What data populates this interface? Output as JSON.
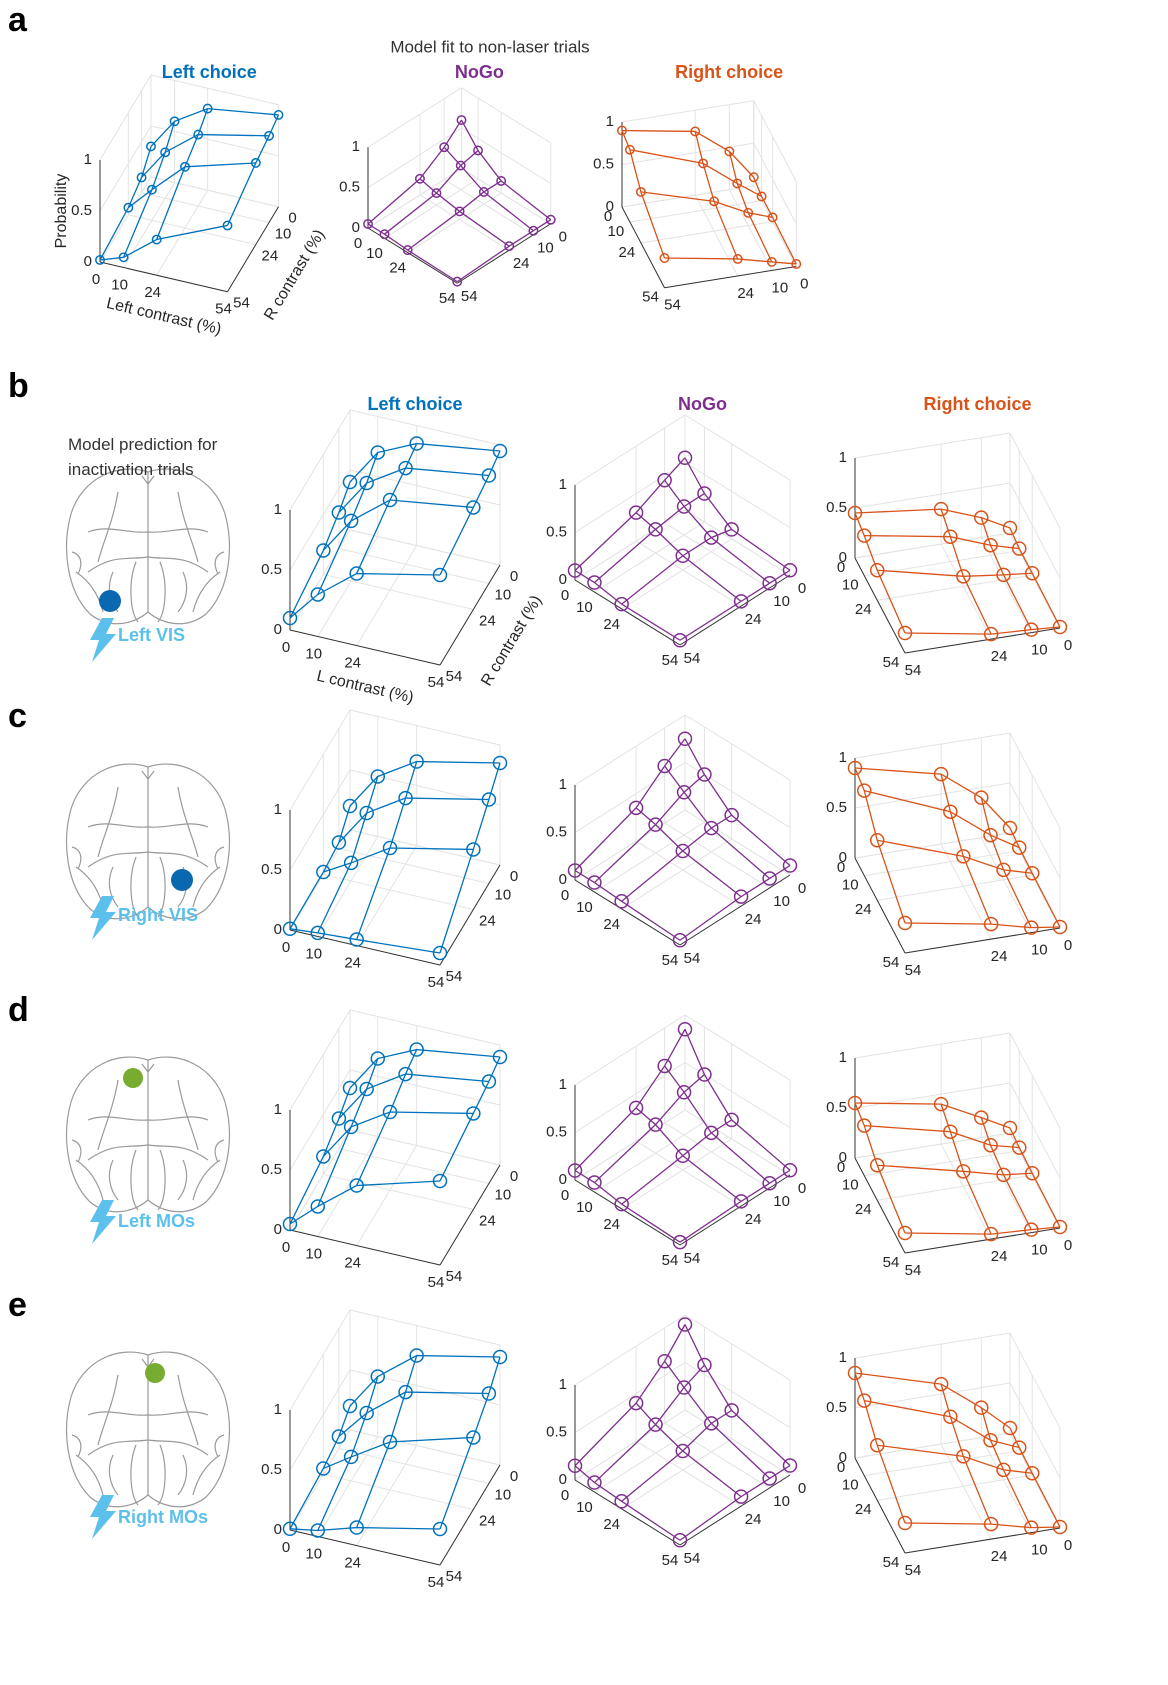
{
  "panels": [
    {
      "letter": "a",
      "heading": "Model fit to non-laser trials"
    },
    {
      "letter": "b",
      "heading": "Model prediction for inactivation trials",
      "site": "Left VIS"
    },
    {
      "letter": "c",
      "site": "Right VIS"
    },
    {
      "letter": "d",
      "site": "Left MOs"
    },
    {
      "letter": "e",
      "site": "Right MOs"
    }
  ],
  "chart_data": [
    {
      "type": "surface3d",
      "title": "Left choice",
      "color": "#0072bd",
      "xlabel": "Left contrast (%)",
      "ylabel": "R contrast (%)",
      "zlabel": "Probability",
      "x": [
        0,
        10,
        24,
        54
      ],
      "y": [
        0,
        10,
        24,
        54
      ],
      "values": [
        [
          0.3,
          0.6,
          0.8,
          0.9
        ],
        [
          0.15,
          0.45,
          0.7,
          0.85
        ],
        [
          0.07,
          0.3,
          0.6,
          0.8
        ],
        [
          0.02,
          0.1,
          0.35,
          0.65
        ]
      ],
      "xlim": [
        0,
        54
      ],
      "ylim": [
        0,
        54
      ],
      "zlim": [
        0,
        1
      ],
      "xticks": [
        0,
        10,
        24,
        54
      ],
      "yticks": [
        0,
        10,
        24,
        54
      ],
      "zticks": [
        0,
        0.5,
        1
      ]
    },
    {
      "type": "surface3d",
      "title": "NoGo",
      "color": "#7e2f8e",
      "x": [
        0,
        10,
        24,
        54
      ],
      "y": [
        0,
        10,
        24,
        54
      ],
      "values": [
        [
          0.6,
          0.35,
          0.15,
          0.05
        ],
        [
          0.4,
          0.3,
          0.15,
          0.05
        ],
        [
          0.2,
          0.15,
          0.1,
          0.05
        ],
        [
          0.05,
          0.05,
          0.03,
          0.02
        ]
      ],
      "xlim": [
        0,
        54
      ],
      "ylim": [
        0,
        54
      ],
      "zlim": [
        0,
        1
      ],
      "xticks": [
        0,
        10,
        24,
        54
      ],
      "yticks": [
        0,
        10,
        24,
        54
      ],
      "zticks": [
        0,
        0.5,
        1
      ]
    },
    {
      "type": "surface3d",
      "title": "Right choice",
      "color": "#d95319",
      "x": [
        0,
        10,
        24,
        54
      ],
      "y": [
        0,
        10,
        24,
        54
      ],
      "values": [
        [
          0.1,
          0.05,
          0.05,
          0.03
        ],
        [
          0.45,
          0.25,
          0.15,
          0.1
        ],
        [
          0.75,
          0.55,
          0.35,
          0.2
        ],
        [
          0.9,
          0.85,
          0.6,
          0.35
        ]
      ],
      "xlim": [
        0,
        54
      ],
      "ylim": [
        0,
        54
      ],
      "zlim": [
        0,
        1
      ],
      "xticks": [
        0,
        10,
        24,
        54
      ],
      "yticks": [
        0,
        10,
        24,
        54
      ],
      "zticks": [
        0,
        0.5,
        1
      ]
    },
    {
      "type": "surface3d",
      "title": "Left choice",
      "color": "#0072bd",
      "xlabel": "L contrast (%)",
      "ylabel": "R contrast (%)",
      "x": [
        0,
        10,
        24,
        54
      ],
      "y": [
        0,
        10,
        24,
        54
      ],
      "values": [
        [
          0.4,
          0.7,
          0.85,
          0.95
        ],
        [
          0.3,
          0.6,
          0.8,
          0.9
        ],
        [
          0.2,
          0.5,
          0.75,
          0.85
        ],
        [
          0.1,
          0.35,
          0.6,
          0.75
        ]
      ],
      "xlim": [
        0,
        54
      ],
      "ylim": [
        0,
        54
      ],
      "zlim": [
        0,
        1
      ],
      "xticks": [
        0,
        10,
        24,
        54
      ],
      "yticks": [
        0,
        10,
        24,
        54
      ],
      "zticks": [
        0,
        0.5,
        1
      ]
    },
    {
      "type": "surface3d",
      "title": "NoGo",
      "color": "#7e2f8e",
      "x": [
        0,
        10,
        24,
        54
      ],
      "y": [
        0,
        10,
        24,
        54
      ],
      "values": [
        [
          0.55,
          0.3,
          0.1,
          0.05
        ],
        [
          0.45,
          0.3,
          0.15,
          0.05
        ],
        [
          0.3,
          0.25,
          0.15,
          0.05
        ],
        [
          0.1,
          0.1,
          0.05,
          0.05
        ]
      ],
      "xlim": [
        0,
        54
      ],
      "ylim": [
        0,
        54
      ],
      "zlim": [
        0,
        1
      ],
      "xticks": [
        0,
        10,
        24,
        54
      ],
      "yticks": [
        0,
        10,
        24,
        54
      ],
      "zticks": [
        0,
        0.5,
        1
      ]
    },
    {
      "type": "surface3d",
      "title": "Right choice",
      "color": "#d95319",
      "x": [
        0,
        10,
        24,
        54
      ],
      "y": [
        0,
        10,
        24,
        54
      ],
      "values": [
        [
          0.05,
          0.02,
          0.02,
          0.01
        ],
        [
          0.2,
          0.1,
          0.05,
          0.03
        ],
        [
          0.35,
          0.25,
          0.1,
          0.05
        ],
        [
          0.45,
          0.4,
          0.3,
          0.2
        ]
      ],
      "xlim": [
        0,
        54
      ],
      "ylim": [
        0,
        54
      ],
      "zlim": [
        0,
        1
      ],
      "xticks": [
        0,
        10,
        24,
        54
      ],
      "yticks": [
        0,
        10,
        24,
        54
      ],
      "zticks": [
        0,
        0.5,
        1
      ]
    },
    {
      "type": "surface3d",
      "color": "#0072bd",
      "x": [
        0,
        10,
        24,
        54
      ],
      "y": [
        0,
        10,
        24,
        54
      ],
      "values": [
        [
          0.2,
          0.5,
          0.7,
          0.85
        ],
        [
          0.05,
          0.35,
          0.55,
          0.7
        ],
        [
          0.02,
          0.15,
          0.35,
          0.5
        ],
        [
          0.01,
          0.03,
          0.05,
          0.1
        ]
      ],
      "xlim": [
        0,
        54
      ],
      "ylim": [
        0,
        54
      ],
      "zlim": [
        0,
        1
      ],
      "xticks": [
        0,
        10,
        24,
        54
      ],
      "yticks": [
        0,
        10,
        24,
        54
      ],
      "zticks": [
        0,
        0.5,
        1
      ]
    },
    {
      "type": "surface3d",
      "color": "#7e2f8e",
      "x": [
        0,
        10,
        24,
        54
      ],
      "y": [
        0,
        10,
        24,
        54
      ],
      "values": [
        [
          0.75,
          0.5,
          0.25,
          0.1
        ],
        [
          0.6,
          0.45,
          0.25,
          0.1
        ],
        [
          0.35,
          0.3,
          0.2,
          0.1
        ],
        [
          0.1,
          0.1,
          0.08,
          0.05
        ]
      ],
      "xlim": [
        0,
        54
      ],
      "ylim": [
        0,
        54
      ],
      "zlim": [
        0,
        1
      ],
      "xticks": [
        0,
        10,
        24,
        54
      ],
      "yticks": [
        0,
        10,
        24,
        54
      ],
      "zticks": [
        0,
        0.5,
        1
      ]
    },
    {
      "type": "surface3d",
      "color": "#d95319",
      "x": [
        0,
        10,
        24,
        54
      ],
      "y": [
        0,
        10,
        24,
        54
      ],
      "values": [
        [
          0.05,
          0.03,
          0.02,
          0.01
        ],
        [
          0.4,
          0.2,
          0.1,
          0.05
        ],
        [
          0.7,
          0.5,
          0.3,
          0.15
        ],
        [
          0.9,
          0.85,
          0.6,
          0.3
        ]
      ],
      "xlim": [
        0,
        54
      ],
      "ylim": [
        0,
        54
      ],
      "zlim": [
        0,
        1
      ],
      "xticks": [
        0,
        10,
        24,
        54
      ],
      "yticks": [
        0,
        10,
        24,
        54
      ],
      "zticks": [
        0,
        0.5,
        1
      ]
    },
    {
      "type": "surface3d",
      "color": "#0072bd",
      "x": [
        0,
        10,
        24,
        54
      ],
      "y": [
        0,
        10,
        24,
        54
      ],
      "values": [
        [
          0.35,
          0.65,
          0.8,
          0.9
        ],
        [
          0.25,
          0.55,
          0.75,
          0.85
        ],
        [
          0.15,
          0.45,
          0.65,
          0.8
        ],
        [
          0.05,
          0.25,
          0.5,
          0.7
        ]
      ],
      "xlim": [
        0,
        54
      ],
      "ylim": [
        0,
        54
      ],
      "zlim": [
        0,
        1
      ],
      "xticks": [
        0,
        10,
        24,
        54
      ],
      "yticks": [
        0,
        10,
        24,
        54
      ],
      "zticks": [
        0,
        0.5,
        1
      ]
    },
    {
      "type": "surface3d",
      "color": "#7e2f8e",
      "x": [
        0,
        10,
        24,
        54
      ],
      "y": [
        0,
        10,
        24,
        54
      ],
      "values": [
        [
          0.85,
          0.5,
          0.2,
          0.05
        ],
        [
          0.6,
          0.45,
          0.2,
          0.05
        ],
        [
          0.35,
          0.3,
          0.15,
          0.05
        ],
        [
          0.1,
          0.1,
          0.05,
          0.03
        ]
      ],
      "xlim": [
        0,
        54
      ],
      "ylim": [
        0,
        54
      ],
      "zlim": [
        0,
        1
      ],
      "xticks": [
        0,
        10,
        24,
        54
      ],
      "yticks": [
        0,
        10,
        24,
        54
      ],
      "zticks": [
        0,
        0.5,
        1
      ]
    },
    {
      "type": "surface3d",
      "color": "#d95319",
      "x": [
        0,
        10,
        24,
        54
      ],
      "y": [
        0,
        10,
        24,
        54
      ],
      "values": [
        [
          0.05,
          0.03,
          0.02,
          0.01
        ],
        [
          0.2,
          0.1,
          0.05,
          0.03
        ],
        [
          0.4,
          0.3,
          0.15,
          0.05
        ],
        [
          0.55,
          0.5,
          0.35,
          0.2
        ]
      ],
      "xlim": [
        0,
        54
      ],
      "ylim": [
        0,
        54
      ],
      "zlim": [
        0,
        1
      ],
      "xticks": [
        0,
        10,
        24,
        54
      ],
      "yticks": [
        0,
        10,
        24,
        54
      ],
      "zticks": [
        0,
        0.5,
        1
      ]
    },
    {
      "type": "surface3d",
      "color": "#0072bd",
      "x": [
        0,
        10,
        24,
        54
      ],
      "y": [
        0,
        10,
        24,
        54
      ],
      "values": [
        [
          0.2,
          0.5,
          0.75,
          0.9
        ],
        [
          0.1,
          0.35,
          0.6,
          0.75
        ],
        [
          0.05,
          0.2,
          0.4,
          0.6
        ],
        [
          0.01,
          0.05,
          0.15,
          0.3
        ]
      ],
      "xlim": [
        0,
        54
      ],
      "ylim": [
        0,
        54
      ],
      "zlim": [
        0,
        1
      ],
      "xticks": [
        0,
        10,
        24,
        54
      ],
      "yticks": [
        0,
        10,
        24,
        54
      ],
      "zticks": [
        0,
        0.5,
        1
      ]
    },
    {
      "type": "surface3d",
      "color": "#7e2f8e",
      "x": [
        0,
        10,
        24,
        54
      ],
      "y": [
        0,
        10,
        24,
        54
      ],
      "values": [
        [
          0.9,
          0.6,
          0.3,
          0.1
        ],
        [
          0.65,
          0.5,
          0.3,
          0.1
        ],
        [
          0.4,
          0.3,
          0.2,
          0.1
        ],
        [
          0.15,
          0.1,
          0.08,
          0.05
        ]
      ],
      "xlim": [
        0,
        54
      ],
      "ylim": [
        0,
        54
      ],
      "zlim": [
        0,
        1
      ],
      "xticks": [
        0,
        10,
        24,
        54
      ],
      "yticks": [
        0,
        10,
        24,
        54
      ],
      "zticks": [
        0,
        0.5,
        1
      ]
    },
    {
      "type": "surface3d",
      "color": "#d95319",
      "x": [
        0,
        10,
        24,
        54
      ],
      "y": [
        0,
        10,
        24,
        54
      ],
      "values": [
        [
          0.05,
          0.03,
          0.02,
          0.01
        ],
        [
          0.3,
          0.15,
          0.1,
          0.05
        ],
        [
          0.6,
          0.45,
          0.3,
          0.15
        ],
        [
          0.85,
          0.75,
          0.55,
          0.3
        ]
      ],
      "xlim": [
        0,
        54
      ],
      "ylim": [
        0,
        54
      ],
      "zlim": [
        0,
        1
      ],
      "xticks": [
        0,
        10,
        24,
        54
      ],
      "yticks": [
        0,
        10,
        24,
        54
      ],
      "zticks": [
        0,
        0.5,
        1
      ]
    }
  ]
}
